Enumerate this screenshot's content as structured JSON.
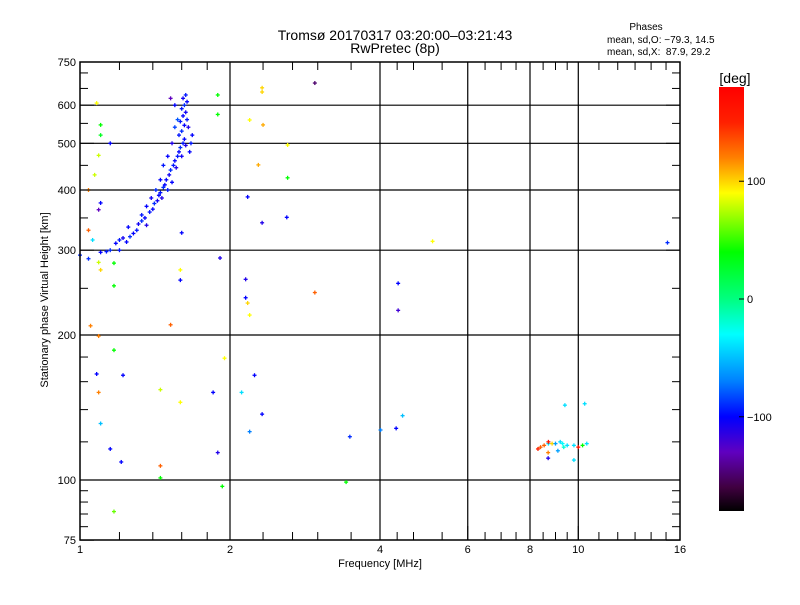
{
  "chart_data": {
    "type": "scatter",
    "title": "Tromsø 20170317 03:20:00–03:21:43",
    "subtitle": "RwPretec (8p)",
    "xlabel": "Frequency [MHz]",
    "ylabel": "Stationary phase Virtual Height [km]",
    "xscale": "log",
    "yscale": "log",
    "xlim": [
      1,
      16
    ],
    "ylim": [
      75,
      750
    ],
    "xticks": [
      1,
      2,
      4,
      6,
      8,
      10,
      16
    ],
    "xtick_labels": [
      "1",
      "2",
      "4",
      "6",
      "8",
      "10",
      "16"
    ],
    "xgrid": [
      2,
      4,
      6,
      8,
      10
    ],
    "yticks": [
      75,
      100,
      200,
      300,
      400,
      500,
      600,
      750
    ],
    "ytick_labels": [
      "75",
      "100",
      "200",
      "300",
      "400",
      "500",
      "600",
      "750"
    ],
    "ygrid": [
      100,
      200,
      300,
      400,
      500,
      600
    ],
    "stats": {
      "heading": "Phases",
      "line_o": "mean, sd,O: −79.3, 14.5",
      "line_x": "mean, sd,X:  87.9, 29.2"
    },
    "colorbar": {
      "label": "[deg]",
      "range": [
        -180,
        180
      ],
      "ticks": [
        100,
        0,
        -100
      ],
      "tick_labels": [
        "100",
        "0",
        "−100"
      ]
    },
    "point_fields": [
      "frequency_MHz",
      "height_km",
      "phase_deg"
    ],
    "points": [
      [
        1.18,
        310,
        -100
      ],
      [
        1.2,
        315,
        -95
      ],
      [
        1.22,
        318,
        -105
      ],
      [
        1.24,
        312,
        -100
      ],
      [
        1.26,
        320,
        -90
      ],
      [
        1.28,
        325,
        -100
      ],
      [
        1.3,
        330,
        -95
      ],
      [
        1.31,
        340,
        -105
      ],
      [
        1.33,
        345,
        -90
      ],
      [
        1.35,
        350,
        -100
      ],
      [
        1.36,
        338,
        -110
      ],
      [
        1.38,
        360,
        -95
      ],
      [
        1.4,
        365,
        -100
      ],
      [
        1.41,
        375,
        -90
      ],
      [
        1.43,
        380,
        -105
      ],
      [
        1.44,
        390,
        -100
      ],
      [
        1.45,
        395,
        -95
      ],
      [
        1.46,
        385,
        -110
      ],
      [
        1.47,
        405,
        -90
      ],
      [
        1.48,
        410,
        -100
      ],
      [
        1.49,
        420,
        -100
      ],
      [
        1.5,
        400,
        -95
      ],
      [
        1.51,
        430,
        -105
      ],
      [
        1.52,
        440,
        -90
      ],
      [
        1.53,
        415,
        -100
      ],
      [
        1.54,
        450,
        -95
      ],
      [
        1.55,
        460,
        -100
      ],
      [
        1.56,
        445,
        -110
      ],
      [
        1.57,
        470,
        -95
      ],
      [
        1.58,
        480,
        -100
      ],
      [
        1.59,
        490,
        -90
      ],
      [
        1.6,
        470,
        -105
      ],
      [
        1.61,
        500,
        -95
      ],
      [
        1.62,
        510,
        -100
      ],
      [
        1.63,
        495,
        -110
      ],
      [
        1.58,
        520,
        -95
      ],
      [
        1.6,
        530,
        -90
      ],
      [
        1.62,
        545,
        -100
      ],
      [
        1.59,
        555,
        -95
      ],
      [
        1.61,
        570,
        -100
      ],
      [
        1.63,
        580,
        -105
      ],
      [
        1.6,
        590,
        -95
      ],
      [
        1.62,
        600,
        -90
      ],
      [
        1.64,
        610,
        -100
      ],
      [
        1.61,
        620,
        -105
      ],
      [
        1.63,
        630,
        -95
      ],
      [
        1.57,
        560,
        -80
      ],
      [
        1.55,
        540,
        -85
      ],
      [
        1.53,
        500,
        -110
      ],
      [
        1.5,
        470,
        -100
      ],
      [
        1.47,
        450,
        -95
      ],
      [
        1.45,
        420,
        -100
      ],
      [
        1.42,
        400,
        -90
      ],
      [
        1.39,
        385,
        -105
      ],
      [
        1.36,
        370,
        -100
      ],
      [
        1.33,
        355,
        -95
      ],
      [
        1.66,
        480,
        -100
      ],
      [
        1.67,
        500,
        -95
      ],
      [
        1.68,
        520,
        -100
      ],
      [
        1.65,
        540,
        -110
      ],
      [
        1.64,
        560,
        -95
      ],
      [
        1.52,
        620,
        -130
      ],
      [
        1.55,
        600,
        -100
      ],
      [
        1.25,
        335,
        -100
      ],
      [
        1.2,
        300,
        -95
      ],
      [
        1.15,
        300,
        -90
      ],
      [
        1.13,
        298,
        -95
      ],
      [
        1.1,
        297,
        -100
      ],
      [
        1.08,
        606,
        90
      ],
      [
        1.1,
        546,
        40
      ],
      [
        1.1,
        520,
        30
      ],
      [
        1.15,
        500,
        -100
      ],
      [
        1.09,
        472,
        80
      ],
      [
        1.07,
        430,
        80
      ],
      [
        1.04,
        400,
        120
      ],
      [
        1.1,
        376,
        -100
      ],
      [
        1.09,
        364,
        -130
      ],
      [
        1.04,
        330,
        130
      ],
      [
        1.06,
        315,
        -40
      ],
      [
        1.04,
        288,
        -90
      ],
      [
        1.09,
        283,
        80
      ],
      [
        1.17,
        282,
        40
      ],
      [
        1.1,
        273,
        100
      ],
      [
        1.17,
        253,
        40
      ],
      [
        1.05,
        209,
        120
      ],
      [
        1.09,
        199,
        120
      ],
      [
        1.17,
        186,
        40
      ],
      [
        1.08,
        166,
        -100
      ],
      [
        1.09,
        152,
        120
      ],
      [
        1.1,
        131,
        -50
      ],
      [
        1.15,
        116,
        -100
      ],
      [
        1.21,
        109,
        -100
      ],
      [
        1.17,
        86,
        60
      ],
      [
        1.0,
        293,
        -90
      ],
      [
        1.22,
        165,
        -100
      ],
      [
        1.45,
        107,
        130
      ],
      [
        1.45,
        101,
        40
      ],
      [
        1.45,
        154,
        80
      ],
      [
        1.52,
        210,
        130
      ],
      [
        1.59,
        145,
        90
      ],
      [
        1.59,
        260,
        -100
      ],
      [
        1.59,
        273,
        90
      ],
      [
        1.6,
        326,
        -100
      ],
      [
        1.89,
        630,
        40
      ],
      [
        1.89,
        574,
        40
      ],
      [
        1.91,
        289,
        -110
      ],
      [
        1.85,
        152,
        -100
      ],
      [
        1.89,
        114,
        -110
      ],
      [
        1.93,
        97,
        40
      ],
      [
        1.95,
        179,
        90
      ],
      [
        2.17,
        387,
        -100
      ],
      [
        2.15,
        261,
        -110
      ],
      [
        2.15,
        239,
        -100
      ],
      [
        2.17,
        233,
        100
      ],
      [
        2.19,
        220,
        90
      ],
      [
        2.19,
        559,
        90
      ],
      [
        2.32,
        652,
        100
      ],
      [
        2.32,
        639,
        100
      ],
      [
        2.33,
        546,
        110
      ],
      [
        2.28,
        451,
        110
      ],
      [
        2.32,
        342,
        -110
      ],
      [
        2.24,
        165,
        -100
      ],
      [
        2.11,
        152,
        -40
      ],
      [
        2.19,
        126,
        -70
      ],
      [
        2.32,
        137,
        -100
      ],
      [
        2.61,
        496,
        90
      ],
      [
        2.61,
        424,
        40
      ],
      [
        2.6,
        351,
        -100
      ],
      [
        2.96,
        667,
        -150
      ],
      [
        2.96,
        245,
        130
      ],
      [
        3.48,
        123,
        -90
      ],
      [
        3.42,
        99,
        40
      ],
      [
        4.01,
        127,
        -70
      ],
      [
        4.31,
        128,
        -100
      ],
      [
        4.35,
        256,
        -100
      ],
      [
        4.35,
        225,
        -120
      ],
      [
        4.44,
        136,
        -50
      ],
      [
        5.1,
        313,
        90
      ],
      [
        15.1,
        311,
        -90
      ],
      [
        8.71,
        119,
        -40
      ],
      [
        8.54,
        118,
        130
      ],
      [
        8.4,
        117,
        130
      ],
      [
        8.3,
        116,
        150
      ],
      [
        8.71,
        120,
        160
      ],
      [
        8.86,
        119,
        100
      ],
      [
        9.0,
        119,
        -60
      ],
      [
        9.2,
        120,
        -40
      ],
      [
        9.3,
        119,
        -30
      ],
      [
        9.5,
        118,
        -40
      ],
      [
        9.35,
        117,
        -20
      ],
      [
        9.1,
        115,
        -60
      ],
      [
        8.7,
        114,
        120
      ],
      [
        8.7,
        111,
        -110
      ],
      [
        9.8,
        118,
        -40
      ],
      [
        10.0,
        117,
        160
      ],
      [
        10.2,
        118,
        40
      ],
      [
        10.4,
        119,
        -40
      ],
      [
        9.4,
        143,
        -40
      ],
      [
        10.3,
        144,
        -40
      ],
      [
        9.8,
        110,
        -40
      ]
    ]
  }
}
